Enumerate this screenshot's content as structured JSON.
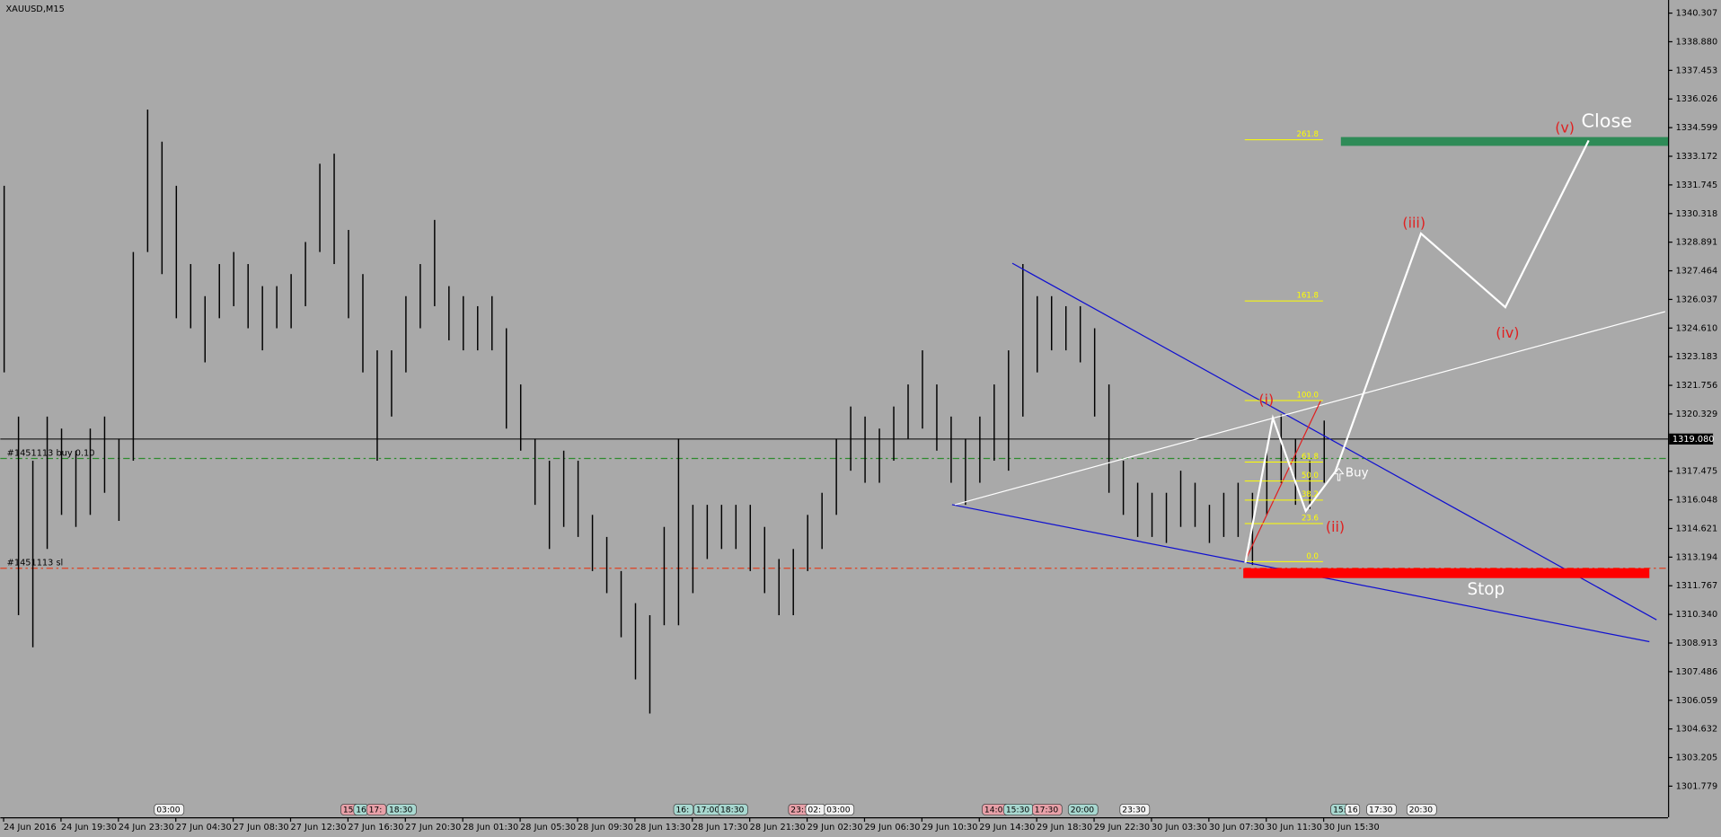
{
  "chart_data": {
    "type": "ohlc-bars",
    "title": "XAUUSD,M15",
    "categories": [
      "24 Jun 2016",
      null,
      null,
      null,
      "24 Jun 19:30",
      null,
      null,
      null,
      "24 Jun 23:30",
      null,
      null,
      null,
      "27 Jun 04:30",
      null,
      null,
      null,
      "27 Jun 08:30",
      null,
      null,
      null,
      "27 Jun 12:30",
      null,
      null,
      null,
      "27 Jun 16:30",
      null,
      null,
      null,
      "27 Jun 20:30",
      null,
      null,
      null,
      "28 Jun 01:30",
      null,
      null,
      null,
      "28 Jun 05:30",
      null,
      null,
      null,
      "28 Jun 09:30",
      null,
      null,
      null,
      "28 Jun 13:30",
      null,
      null,
      null,
      "28 Jun 17:30",
      null,
      null,
      null,
      "28 Jun 21:30",
      null,
      null,
      null,
      "29 Jun 02:30",
      null,
      null,
      null,
      "29 Jun 06:30",
      null,
      null,
      null,
      "29 Jun 10:30",
      null,
      null,
      null,
      "29 Jun 14:30",
      null,
      null,
      null,
      "29 Jun 18:30",
      null,
      null,
      null,
      "29 Jun 22:30",
      null,
      null,
      null,
      "30 Jun 03:30",
      null,
      null,
      null,
      "30 Jun 07:30",
      null,
      null,
      null,
      "30 Jun 11:30",
      null,
      null,
      null,
      "30 Jun 15:30"
    ],
    "high": [
      1331.7,
      1320.2,
      1318.0,
      1320.2,
      1319.6,
      1318.5,
      1319.6,
      1320.2,
      1319.1,
      1328.4,
      1335.5,
      1333.9,
      1331.7,
      1327.8,
      1326.2,
      1327.8,
      1328.4,
      1327.8,
      1326.7,
      1326.7,
      1327.3,
      1328.9,
      1332.8,
      1333.3,
      1329.5,
      1327.3,
      1323.5,
      1323.5,
      1326.2,
      1327.8,
      1330.0,
      1326.7,
      1326.2,
      1325.7,
      1326.2,
      1324.6,
      1321.8,
      1319.1,
      1318.0,
      1318.5,
      1318.0,
      1315.3,
      1314.2,
      1312.5,
      1310.9,
      1310.3,
      1314.7,
      1319.1,
      1315.8,
      1315.8,
      1315.8,
      1315.8,
      1315.8,
      1314.7,
      1313.1,
      1313.6,
      1315.3,
      1316.4,
      1319.1,
      1320.7,
      1320.2,
      1319.6,
      1320.7,
      1321.8,
      1323.5,
      1321.8,
      1320.2,
      1319.1,
      1320.2,
      1321.8,
      1323.5,
      1327.8,
      1326.2,
      1326.2,
      1325.7,
      1325.7,
      1324.6,
      1321.8,
      1318.0,
      1316.9,
      1316.4,
      1316.4,
      1317.5,
      1316.9,
      1315.8,
      1316.4,
      1316.9,
      1316.4,
      1318.5,
      1320.3,
      1319.1,
      1318.0,
      1320.0
    ],
    "low": [
      1322.4,
      1310.3,
      1308.7,
      1313.6,
      1315.3,
      1314.7,
      1315.3,
      1316.4,
      1315.0,
      1318.0,
      1328.4,
      1327.3,
      1325.1,
      1324.6,
      1322.9,
      1325.1,
      1325.7,
      1324.6,
      1323.5,
      1324.6,
      1324.6,
      1325.7,
      1328.4,
      1327.8,
      1325.1,
      1322.4,
      1318.0,
      1320.2,
      1322.4,
      1324.6,
      1325.7,
      1324.0,
      1323.5,
      1323.5,
      1323.5,
      1319.6,
      1318.5,
      1315.8,
      1313.6,
      1314.7,
      1314.2,
      1312.5,
      1311.4,
      1309.2,
      1307.1,
      1305.4,
      1309.8,
      1309.8,
      1311.4,
      1313.1,
      1313.6,
      1313.6,
      1312.5,
      1311.4,
      1310.3,
      1310.3,
      1312.5,
      1313.6,
      1315.3,
      1317.5,
      1316.9,
      1316.9,
      1318.0,
      1319.1,
      1319.6,
      1318.5,
      1316.9,
      1315.8,
      1316.9,
      1318.0,
      1317.5,
      1320.2,
      1322.4,
      1323.5,
      1323.5,
      1322.9,
      1320.2,
      1316.4,
      1315.3,
      1314.2,
      1314.2,
      1313.9,
      1314.7,
      1314.7,
      1313.9,
      1314.2,
      1314.2,
      1312.8,
      1315.3,
      1316.9,
      1315.8,
      1315.6,
      1316.9
    ],
    "color": "#000000",
    "xlim": [
      -0.23,
      116
    ],
    "ylim": [
      1300.23,
      1340.96
    ],
    "yticks": [
      1340.307,
      {
        "value": 1338.88,
        "label": "1338.880"
      },
      1337.453,
      1336.026,
      1334.599,
      1333.172,
      1331.745,
      1330.318,
      1328.891,
      1327.464,
      1326.037,
      {
        "value": 1324.61,
        "label": "1324.610"
      },
      1323.183,
      1321.756,
      1320.329,
      1317.475,
      1316.048,
      1314.621,
      1313.194,
      1311.767,
      {
        "value": 1310.34,
        "label": "1310.340"
      },
      1308.913,
      1307.486,
      1306.059,
      1304.632,
      1303.205,
      1301.779
    ],
    "current_price": {
      "value": 1319.08,
      "label": "1319.080"
    },
    "order_lines": [
      {
        "value": 1318.11,
        "label": "#1451113 buy 0.10",
        "color": "#2e8b2e"
      },
      {
        "value": 1312.64,
        "label": "#1451113 sl",
        "color": "#e04020"
      }
    ],
    "trendlines": [
      {
        "color": "#1010d0",
        "x": [
          70.3,
          115.2
        ],
        "y": [
          1327.84,
          1310.07
        ]
      },
      {
        "color": "#1010d0",
        "x": [
          66.1,
          114.7
        ],
        "y": [
          1315.81,
          1308.98
        ]
      },
      {
        "color": "#ffffff",
        "x": [
          66.3,
          115.8
        ],
        "y": [
          1315.81,
          1325.43
        ]
      }
    ],
    "wave": {
      "color": "#ffffff",
      "x": [
        86.54,
        88.46,
        90.75,
        92.81,
        98.78,
        104.66,
        110.47
      ],
      "y": [
        1312.91,
        1320.13,
        1315.49,
        1317.45,
        1329.32,
        1325.65,
        1333.96
      ]
    },
    "wave_labels": [
      "(i)",
      "(ii)",
      "(iii)",
      "(iv)",
      "(v)"
    ],
    "fibo": {
      "color": "#ffff00",
      "base_color": "#e02020",
      "start": [
        86.5,
        1312.97
      ],
      "end": [
        91.8,
        1321.0
      ],
      "levels": [
        {
          "value": 0,
          "label": "0.0"
        },
        23.6,
        38.2,
        {
          "value": 50,
          "label": "50.0"
        },
        61.8,
        {
          "value": 100,
          "label": "100.0"
        },
        161.8,
        261.8
      ]
    },
    "zones": [
      {
        "label": "Close",
        "color": "#2e8b57",
        "from": [
          93.2,
          1333.69
        ],
        "to": [
          116,
          1334.13
        ]
      },
      {
        "label": "Stop",
        "color": "#ff0000",
        "from": [
          86.4,
          1312.15
        ],
        "to": [
          114.7,
          1312.64
        ]
      }
    ],
    "buy_label": "Buy",
    "events": [
      {
        "label": "03:00",
        "at": 10.5,
        "color": "#f0f0f0"
      },
      {
        "label": "15:3",
        "at": 23.5,
        "color": "#e7a0a8"
      },
      {
        "label": "16",
        "at": 24.4,
        "color": "#a8d8d0"
      },
      {
        "label": "17:",
        "at": 25.3,
        "color": "#e7a0a8"
      },
      {
        "label": "18:30",
        "at": 26.7,
        "color": "#a8d8d0"
      },
      {
        "label": "16:",
        "at": 46.7,
        "color": "#a8d8d0"
      },
      {
        "label": "17:00",
        "at": 48.1,
        "color": "#a8d8d0"
      },
      {
        "label": "18:30",
        "at": 49.8,
        "color": "#a8d8d0"
      },
      {
        "label": "23:30",
        "at": 54.7,
        "color": "#e7a0a8"
      },
      {
        "label": "02:",
        "at": 55.9,
        "color": "#f0f0f0"
      },
      {
        "label": "03:00",
        "at": 57.2,
        "color": "#f0f0f0"
      },
      {
        "label": "14:00",
        "at": 68.2,
        "color": "#e7a0a8"
      },
      {
        "label": "15:30",
        "at": 69.7,
        "color": "#a8d8d0"
      },
      {
        "label": "17:30",
        "at": 71.7,
        "color": "#e7a0a8"
      },
      {
        "label": "20:00",
        "at": 74.2,
        "color": "#a8d8d0"
      },
      {
        "label": "23:30",
        "at": 77.8,
        "color": "#f0f0f0"
      },
      {
        "label": "15:3",
        "at": 92.5,
        "color": "#a8d8d0"
      },
      {
        "label": "16",
        "at": 93.5,
        "color": "#f0f0f0"
      },
      {
        "label": "17:30",
        "at": 95.0,
        "color": "#f0f0f0"
      },
      {
        "label": "20:30",
        "at": 97.8,
        "color": "#f0f0f0"
      }
    ]
  }
}
